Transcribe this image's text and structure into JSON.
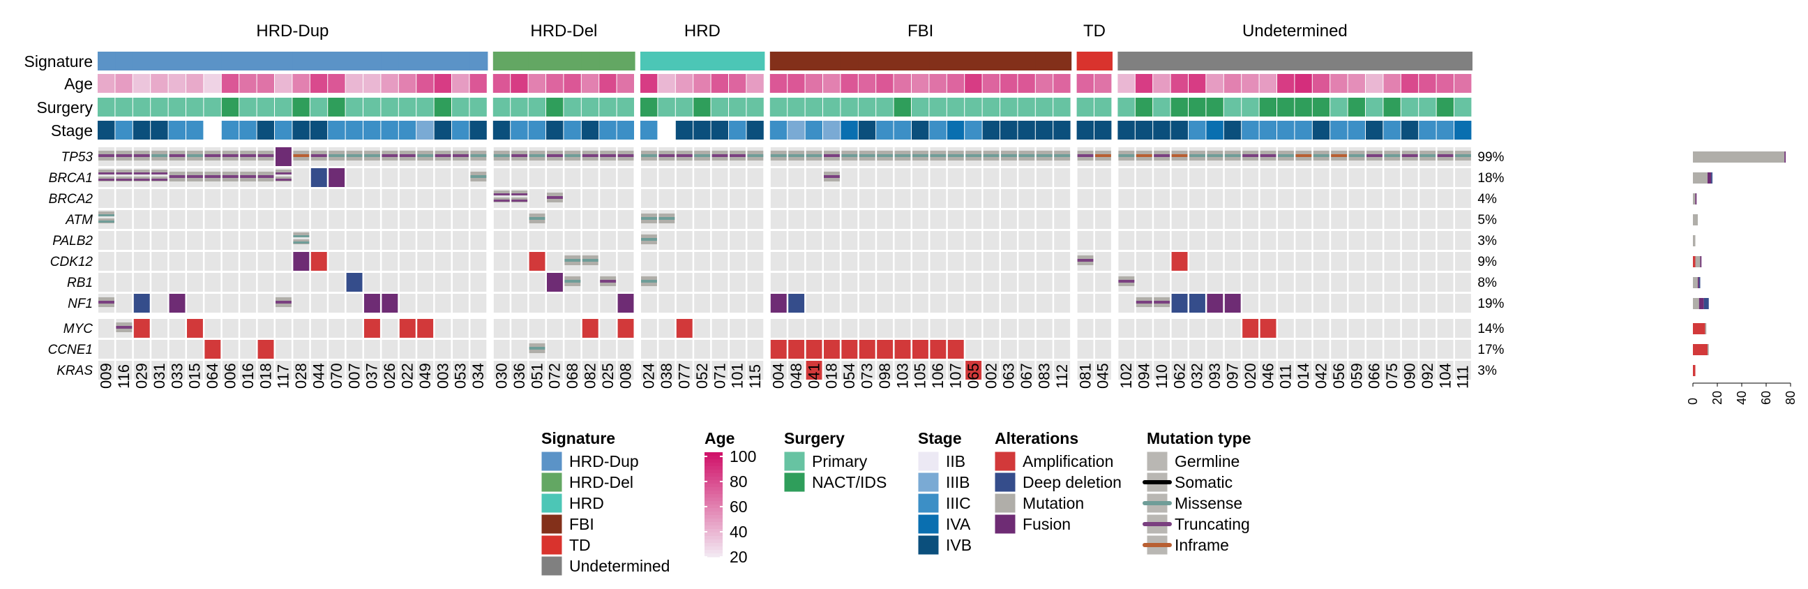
{
  "chart_data": {
    "type": "heatmap",
    "groups": [
      {
        "name": "HRD-Dup",
        "samples": [
          "009",
          "116",
          "029",
          "031",
          "033",
          "015",
          "064",
          "006",
          "016",
          "018",
          "117",
          "028",
          "044",
          "070",
          "007",
          "037",
          "026",
          "022",
          "049",
          "003",
          "053",
          "034"
        ],
        "stage": [
          "IVB",
          "IIIC",
          "IVB",
          "IVB",
          "IIIC",
          "IIIC",
          "",
          "IIIC",
          "IIIC",
          "IVB",
          "IIIC",
          "IVB",
          "IVB",
          "IIIC",
          "IIIC",
          "IIIC",
          "IIIC",
          "IIIC",
          "IIIB",
          "IVB",
          "IIIC",
          "IVB"
        ],
        "age": [
          45,
          50,
          35,
          45,
          40,
          45,
          30,
          75,
          65,
          65,
          40,
          60,
          80,
          75,
          40,
          40,
          50,
          60,
          75,
          85,
          50,
          75
        ],
        "surgery": [
          "Primary",
          "Primary",
          "Primary",
          "Primary",
          "Primary",
          "Primary",
          "Primary",
          "NACT/IDS",
          "Primary",
          "Primary",
          "Primary",
          "NACT/IDS",
          "Primary",
          "NACT/IDS",
          "Primary",
          "Primary",
          "Primary",
          "Primary",
          "Primary",
          "NACT/IDS",
          "Primary",
          "Primary"
        ]
      },
      {
        "name": "HRD-Del",
        "samples": [
          "030",
          "036",
          "051",
          "072",
          "068",
          "082",
          "025",
          "008"
        ],
        "stage": [
          "IVB",
          "IIIC",
          "IIIC",
          "IVB",
          "IIIC",
          "IVB",
          "IIIC",
          "IIIC"
        ],
        "age": [
          75,
          85,
          60,
          70,
          75,
          60,
          80,
          65
        ],
        "surgery": [
          "Primary",
          "Primary",
          "Primary",
          "NACT/IDS",
          "Primary",
          "Primary",
          "Primary",
          "Primary"
        ]
      },
      {
        "name": "HRD",
        "samples": [
          "024",
          "038",
          "077",
          "052",
          "071",
          "101",
          "115"
        ],
        "stage": [
          "IIIC",
          "",
          "IVB",
          "IVB",
          "IVB",
          "IIIC",
          "IVB"
        ],
        "age": [
          85,
          40,
          50,
          60,
          75,
          70,
          50
        ],
        "surgery": [
          "NACT/IDS",
          "Primary",
          "Primary",
          "NACT/IDS",
          "Primary",
          "Primary",
          "Primary"
        ]
      },
      {
        "name": "FBI",
        "samples": [
          "004",
          "048",
          "041",
          "018",
          "054",
          "073",
          "098",
          "103",
          "105",
          "106",
          "107",
          "065",
          "002",
          "063",
          "067",
          "083",
          "112"
        ],
        "stage": [
          "IIIC",
          "IIIB",
          "IIIC",
          "IIIB",
          "IVA",
          "IVB",
          "IIIC",
          "IIIC",
          "IVB",
          "IIIC",
          "IVA",
          "IIIC",
          "IVB",
          "IVB",
          "IVB",
          "IVB",
          "IVB"
        ],
        "age": [
          75,
          75,
          65,
          60,
          75,
          70,
          75,
          65,
          60,
          65,
          70,
          85,
          70,
          75,
          75,
          65,
          70
        ],
        "surgery": [
          "Primary",
          "Primary",
          "Primary",
          "Primary",
          "Primary",
          "Primary",
          "Primary",
          "NACT/IDS",
          "Primary",
          "Primary",
          "Primary",
          "Primary",
          "Primary",
          "Primary",
          "Primary",
          "Primary",
          "Primary"
        ]
      },
      {
        "name": "TD",
        "samples": [
          "081",
          "045"
        ],
        "stage": [
          "IVB",
          "IVB"
        ],
        "age": [
          70,
          65
        ],
        "surgery": [
          "Primary",
          "Primary"
        ]
      },
      {
        "name": "Undetermined",
        "samples": [
          "102",
          "094",
          "110",
          "062",
          "032",
          "093",
          "097",
          "020",
          "046",
          "011",
          "014",
          "042",
          "056",
          "059",
          "066",
          "075",
          "090",
          "092",
          "104",
          "111"
        ],
        "stage": [
          "IVB",
          "IVB",
          "IVB",
          "IVB",
          "IIIC",
          "IVA",
          "IVB",
          "IIIC",
          "IIIC",
          "IIIC",
          "IIIC",
          "IVB",
          "IIIC",
          "IIIC",
          "IVB",
          "IIIC",
          "IVB",
          "IIIC",
          "IIIC",
          "IVA"
        ],
        "age": [
          40,
          85,
          50,
          80,
          85,
          50,
          60,
          55,
          50,
          85,
          90,
          75,
          60,
          55,
          40,
          60,
          80,
          75,
          70,
          65
        ],
        "surgery": [
          "Primary",
          "NACT/IDS",
          "Primary",
          "NACT/IDS",
          "NACT/IDS",
          "NACT/IDS",
          "Primary",
          "Primary",
          "NACT/IDS",
          "NACT/IDS",
          "NACT/IDS",
          "NACT/IDS",
          "Primary",
          "NACT/IDS",
          "Primary",
          "NACT/IDS",
          "Primary",
          "Primary",
          "NACT/IDS",
          "Primary"
        ]
      }
    ],
    "annotation_tracks": [
      "Signature",
      "Age",
      "Surgery",
      "Stage"
    ],
    "genes": [
      "TP53",
      "BRCA1",
      "BRCA2",
      "ATM",
      "PALB2",
      "CDK12",
      "RB1",
      "NF1",
      "MYC",
      "CCNE1",
      "KRAS"
    ],
    "gene_block_split_after": "NF1",
    "gene_percent": [
      "99%",
      "18%",
      "4%",
      "5%",
      "3%",
      "9%",
      "8%",
      "19%",
      "14%",
      "17%",
      "3%"
    ],
    "gene_counts": [
      {
        "Mutation": 75,
        "Fusion": 1,
        "Amplification": 0,
        "Deep deletion": 0
      },
      {
        "Mutation": 12,
        "Fusion": 3,
        "Amplification": 0,
        "Deep deletion": 1
      },
      {
        "Mutation": 2,
        "Fusion": 1,
        "Amplification": 0,
        "Deep deletion": 0
      },
      {
        "Mutation": 4,
        "Fusion": 0,
        "Amplification": 0,
        "Deep deletion": 0
      },
      {
        "Mutation": 2,
        "Fusion": 0,
        "Amplification": 0,
        "Deep deletion": 0
      },
      {
        "Mutation": 4,
        "Fusion": 1,
        "Amplification": 2,
        "Deep deletion": 0
      },
      {
        "Mutation": 4,
        "Fusion": 1,
        "Amplification": 0,
        "Deep deletion": 1
      },
      {
        "Mutation": 5,
        "Fusion": 4,
        "Amplification": 0,
        "Deep deletion": 4
      },
      {
        "Mutation": 1,
        "Fusion": 0,
        "Amplification": 10,
        "Deep deletion": 0
      },
      {
        "Mutation": 1,
        "Fusion": 0,
        "Amplification": 12,
        "Deep deletion": 0
      },
      {
        "Mutation": 0,
        "Fusion": 0,
        "Amplification": 2,
        "Deep deletion": 0
      }
    ],
    "bar_axis": {
      "ticks": [
        0,
        20,
        40,
        60,
        80
      ],
      "max": 80
    },
    "alterations": {
      "TP53": {
        "all_missense_except": {
          "009": "Truncating",
          "116": "Truncating",
          "029": "Truncating",
          "033": "Truncating",
          "064": "Truncating",
          "006": "Truncating",
          "016": "Truncating",
          "018": "Truncating",
          "117": "Fusion",
          "028": "Inframe",
          "044": "Truncating",
          "026": "Truncating",
          "022": "Truncating",
          "003": "Truncating",
          "053": "Truncating",
          "036": "Truncating",
          "072": "Truncating",
          "082": "Truncating",
          "025": "Truncating",
          "008": "Truncating",
          "038": "Truncating",
          "077": "Truncating",
          "071": "Truncating",
          "101": "Truncating",
          "081": "Truncating",
          "045": "Inframe",
          "094": "Inframe",
          "110": "Truncating",
          "062": "Inframe",
          "020": "Truncating",
          "046": "Truncating",
          "014": "Inframe",
          "056": "Inframe",
          "066": "Truncating",
          "090": "Truncating",
          "104": "Truncating"
        },
        "missing": []
      },
      "BRCA1": {
        "009": "Germline-Truncating",
        "116": "Germline-Truncating",
        "029": "Germline-Truncating",
        "031": "Germline-Truncating",
        "033": "Truncating",
        "015": "Truncating",
        "064": "Truncating",
        "006": "Truncating",
        "016": "Truncating",
        "018": "Truncating",
        "117": "Germline-Truncating",
        "044": "Deep deletion",
        "070": "Fusion",
        "034": "Missense"
      },
      "BRCA2": {
        "030": "Germline-Truncating",
        "036": "Germline-Truncating",
        "072": "Truncating"
      },
      "ATM": {
        "009": "Germline-Missense",
        "051": "Missense",
        "024": "Missense",
        "038": "Missense"
      },
      "PALB2": {
        "028": "Germline-Missense",
        "024": "Missense"
      },
      "CDK12": {
        "028": "Fusion",
        "044": "Amplification",
        "051": "Amplification",
        "068": "Missense",
        "082": "Missense",
        "081": "Truncating",
        "062": "Amplification"
      },
      "RB1": {
        "007": "Deep deletion",
        "072": "Fusion",
        "068": "Missense",
        "025": "Truncating",
        "024": "Missense",
        "102": "Truncating"
      },
      "NF1": {
        "009": "Truncating",
        "029": "Deep deletion",
        "033": "Fusion",
        "117": "Truncating",
        "037": "Fusion",
        "026": "Fusion",
        "008": "Fusion",
        "004": "Fusion",
        "048": "Deep deletion",
        "094": "Truncating",
        "110": "Truncating",
        "062": "Deep deletion",
        "032": "Deep deletion",
        "093": "Fusion",
        "097": "Fusion"
      },
      "MYC": {
        "116": "Truncating",
        "029": "Amplification",
        "015": "Amplification",
        "037": "Amplification",
        "022": "Amplification",
        "049": "Amplification",
        "082": "Amplification",
        "008": "Amplification",
        "077": "Amplification",
        "020": "Amplification",
        "046": "Amplification"
      },
      "CCNE1": {
        "064": "Amplification",
        "051": "Missense",
        "004": "Amplification",
        "048": "Amplification",
        "041": "Amplification",
        "018": "Amplification",
        "054": "Amplification",
        "073": "Amplification",
        "098": "Amplification",
        "103": "Amplification",
        "105": "Amplification",
        "106": "Amplification",
        "107": "Amplification"
      },
      "KRAS": {
        "041": "Amplification",
        "065": "Amplification"
      }
    },
    "legend": {
      "signature": {
        "title": "Signature",
        "items": [
          "HRD-Dup",
          "HRD-Del",
          "HRD",
          "FBI",
          "TD",
          "Undetermined"
        ]
      },
      "age": {
        "title": "Age",
        "ticks": [
          "100",
          "80",
          "60",
          "40",
          "20"
        ]
      },
      "surgery": {
        "title": "Surgery",
        "items": [
          "Primary",
          "NACT/IDS"
        ]
      },
      "stage": {
        "title": "Stage",
        "items": [
          "IIB",
          "IIIB",
          "IIIC",
          "IVA",
          "IVB"
        ]
      },
      "alterations": {
        "title": "Alterations",
        "items": [
          "Amplification",
          "Deep deletion",
          "Mutation",
          "Fusion"
        ]
      },
      "mutation_type": {
        "title": "Mutation type",
        "items": [
          "Germline",
          "Somatic",
          "Missense",
          "Truncating",
          "Inframe"
        ]
      }
    },
    "colors": {
      "signature": {
        "HRD-Dup": "#5b93c7",
        "HRD-Del": "#63a763",
        "HRD": "#4cc6b6",
        "FBI": "#83301a",
        "TD": "#d9332d",
        "Undetermined": "#808080"
      },
      "surgery": {
        "Primary": "#67c3a2",
        "NACT/IDS": "#2f9e5b"
      },
      "stage": {
        "IIB": "#ece9f4",
        "IIIB": "#7aaad4",
        "IIIC": "#3c8fc6",
        "IVA": "#0a6fb0",
        "IVB": "#0b4f7c",
        "": "#ffffff"
      },
      "Amplification": "#d2393a",
      "Deep deletion": "#354d8b",
      "Mutation": "#b0aea9",
      "Fusion": "#6e2c74",
      "Missense": "#6f9d98",
      "Truncating": "#7a4080",
      "Inframe": "#b85f32",
      "Germline": "#b9b7b3",
      "Somatic": "#000000",
      "empty": "#e5e5e5",
      "age_low": "#f3eef6",
      "age_high": "#d0136a"
    }
  }
}
